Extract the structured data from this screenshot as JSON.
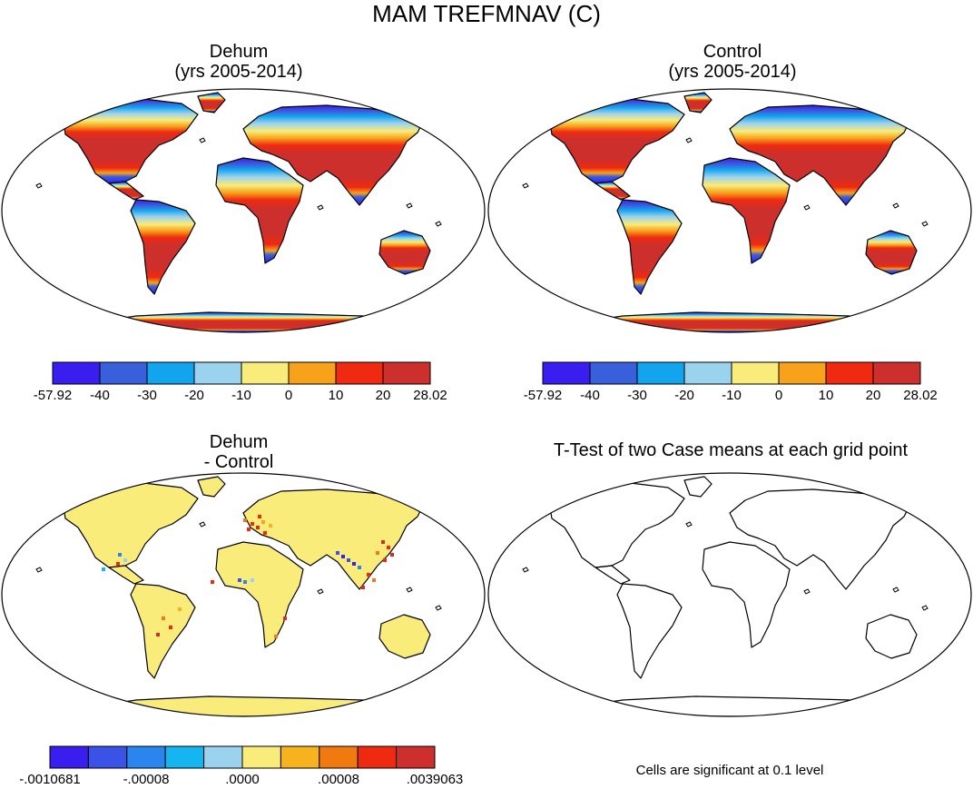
{
  "chart_data": [
    {
      "type": "heatmap",
      "panel": "top-left",
      "title": "Dehum",
      "subtitle": "(yrs 2005-2014)",
      "colorbar": {
        "labels": [
          "-57.92",
          "-40",
          "-30",
          "-20",
          "-10",
          "0",
          "10",
          "20",
          "28.02"
        ],
        "colors": [
          "#3a1ef0",
          "#3a5fdc",
          "#12a4ef",
          "#9bd2ee",
          "#f9ec7a",
          "#f7a21a",
          "#ef2a10",
          "#cd2f2d"
        ]
      }
    },
    {
      "type": "heatmap",
      "panel": "top-right",
      "title": "Control",
      "subtitle": "(yrs 2005-2014)",
      "colorbar": {
        "labels": [
          "-57.92",
          "-40",
          "-30",
          "-20",
          "-10",
          "0",
          "10",
          "20",
          "28.02"
        ],
        "colors": [
          "#3a1ef0",
          "#3a5fdc",
          "#12a4ef",
          "#9bd2ee",
          "#f9ec7a",
          "#f7a21a",
          "#ef2a10",
          "#cd2f2d"
        ]
      }
    },
    {
      "type": "heatmap",
      "panel": "bottom-left",
      "title": "Dehum",
      "subtitle": "- Control",
      "colorbar": {
        "labels": [
          "-.0010681",
          "-.00008",
          ".0000",
          ".00008",
          ".0039063"
        ],
        "colors": [
          "#3a1ef0",
          "#3a52e6",
          "#2a86ef",
          "#15b6f0",
          "#9bd2ee",
          "#f9ec7a",
          "#f7b31e",
          "#f07a10",
          "#ef2a10",
          "#cd2f2d"
        ]
      }
    },
    {
      "type": "heatmap",
      "panel": "bottom-right",
      "title": "T-Test of two Case means at each grid point",
      "note": "Cells are significant at 0.1 level"
    }
  ],
  "header": {
    "title": "MAM TREFMNAV (C)"
  },
  "panels": {
    "tl": {
      "title": "Dehum",
      "subtitle": "(yrs 2005-2014)"
    },
    "tr": {
      "title": "Control",
      "subtitle": "(yrs 2005-2014)"
    },
    "bl": {
      "title": "Dehum",
      "subtitle": "- Control"
    },
    "br": {
      "title": "T-Test of two Case means at each grid point",
      "note": "Cells are significant at 0.1 level"
    }
  }
}
